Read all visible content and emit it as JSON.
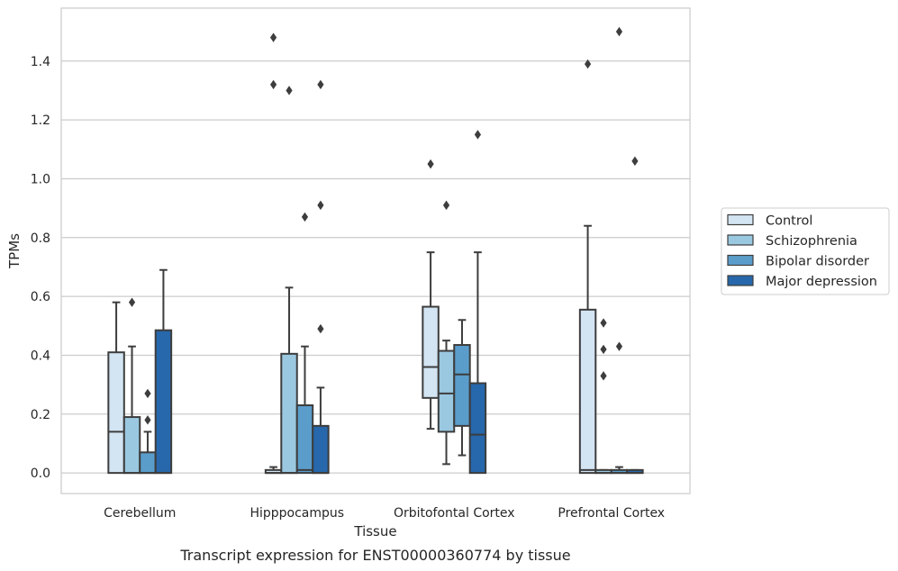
{
  "chart_data": {
    "type": "box",
    "caption": "Transcript expression for ENST00000360774 by tissue",
    "xlabel": "Tissue",
    "ylabel": "TPMs",
    "ylim": [
      -0.07,
      1.58
    ],
    "yticks": [
      0.0,
      0.2,
      0.4,
      0.6,
      0.8,
      1.0,
      1.2,
      1.4
    ],
    "ytick_labels": [
      "0.0",
      "0.2",
      "0.4",
      "0.6",
      "0.8",
      "1.0",
      "1.2",
      "1.4"
    ],
    "grid": "horizontal",
    "legend_position": "right",
    "categories": [
      "Cerebellum",
      "Hipppocampus",
      "Orbitofontal Cortex",
      "Prefrontal Cortex"
    ],
    "series": [
      {
        "name": "Control",
        "color": "#d3e4f3",
        "boxes": [
          {
            "q1": 0.0,
            "median": 0.14,
            "q3": 0.41,
            "whisker_low": 0.0,
            "whisker_high": 0.58,
            "outliers": []
          },
          {
            "q1": 0.0,
            "median": 0.0,
            "q3": 0.01,
            "whisker_low": 0.0,
            "whisker_high": 0.02,
            "outliers": [
              1.48,
              1.32
            ]
          },
          {
            "q1": 0.255,
            "median": 0.36,
            "q3": 0.565,
            "whisker_low": 0.15,
            "whisker_high": 0.75,
            "outliers": [
              1.05
            ]
          },
          {
            "q1": 0.0,
            "median": 0.01,
            "q3": 0.555,
            "whisker_low": 0.0,
            "whisker_high": 0.84,
            "outliers": [
              1.39
            ]
          }
        ]
      },
      {
        "name": "Schizophrenia",
        "color": "#9ac8e0",
        "boxes": [
          {
            "q1": 0.0,
            "median": 0.0,
            "q3": 0.19,
            "whisker_low": 0.0,
            "whisker_high": 0.43,
            "outliers": [
              0.58
            ]
          },
          {
            "q1": 0.0,
            "median": 0.0,
            "q3": 0.405,
            "whisker_low": 0.0,
            "whisker_high": 0.63,
            "outliers": [
              1.3
            ]
          },
          {
            "q1": 0.14,
            "median": 0.27,
            "q3": 0.415,
            "whisker_low": 0.03,
            "whisker_high": 0.45,
            "outliers": [
              0.91
            ]
          },
          {
            "q1": 0.0,
            "median": 0.0,
            "q3": 0.01,
            "whisker_low": 0.0,
            "whisker_high": 0.01,
            "outliers": [
              0.51,
              0.42,
              0.33
            ]
          }
        ]
      },
      {
        "name": "Bipolar disorder",
        "color": "#5a9dcb",
        "boxes": [
          {
            "q1": 0.0,
            "median": 0.0,
            "q3": 0.07,
            "whisker_low": 0.0,
            "whisker_high": 0.14,
            "outliers": [
              0.27,
              0.18
            ]
          },
          {
            "q1": 0.0,
            "median": 0.01,
            "q3": 0.23,
            "whisker_low": 0.0,
            "whisker_high": 0.43,
            "outliers": [
              0.87
            ]
          },
          {
            "q1": 0.16,
            "median": 0.335,
            "q3": 0.435,
            "whisker_low": 0.06,
            "whisker_high": 0.52,
            "outliers": []
          },
          {
            "q1": 0.0,
            "median": 0.0,
            "q3": 0.01,
            "whisker_low": 0.0,
            "whisker_high": 0.02,
            "outliers": [
              1.5,
              0.43
            ]
          }
        ]
      },
      {
        "name": "Major depression",
        "color": "#2767ab",
        "boxes": [
          {
            "q1": 0.0,
            "median": 0.0,
            "q3": 0.485,
            "whisker_low": 0.0,
            "whisker_high": 0.69,
            "outliers": []
          },
          {
            "q1": 0.0,
            "median": 0.0,
            "q3": 0.16,
            "whisker_low": 0.0,
            "whisker_high": 0.29,
            "outliers": [
              1.32,
              0.91,
              0.49
            ]
          },
          {
            "q1": 0.0,
            "median": 0.13,
            "q3": 0.305,
            "whisker_low": 0.0,
            "whisker_high": 0.75,
            "outliers": [
              1.15
            ]
          },
          {
            "q1": 0.0,
            "median": 0.0,
            "q3": 0.01,
            "whisker_low": 0.0,
            "whisker_high": 0.01,
            "outliers": [
              1.06
            ]
          }
        ]
      }
    ]
  }
}
